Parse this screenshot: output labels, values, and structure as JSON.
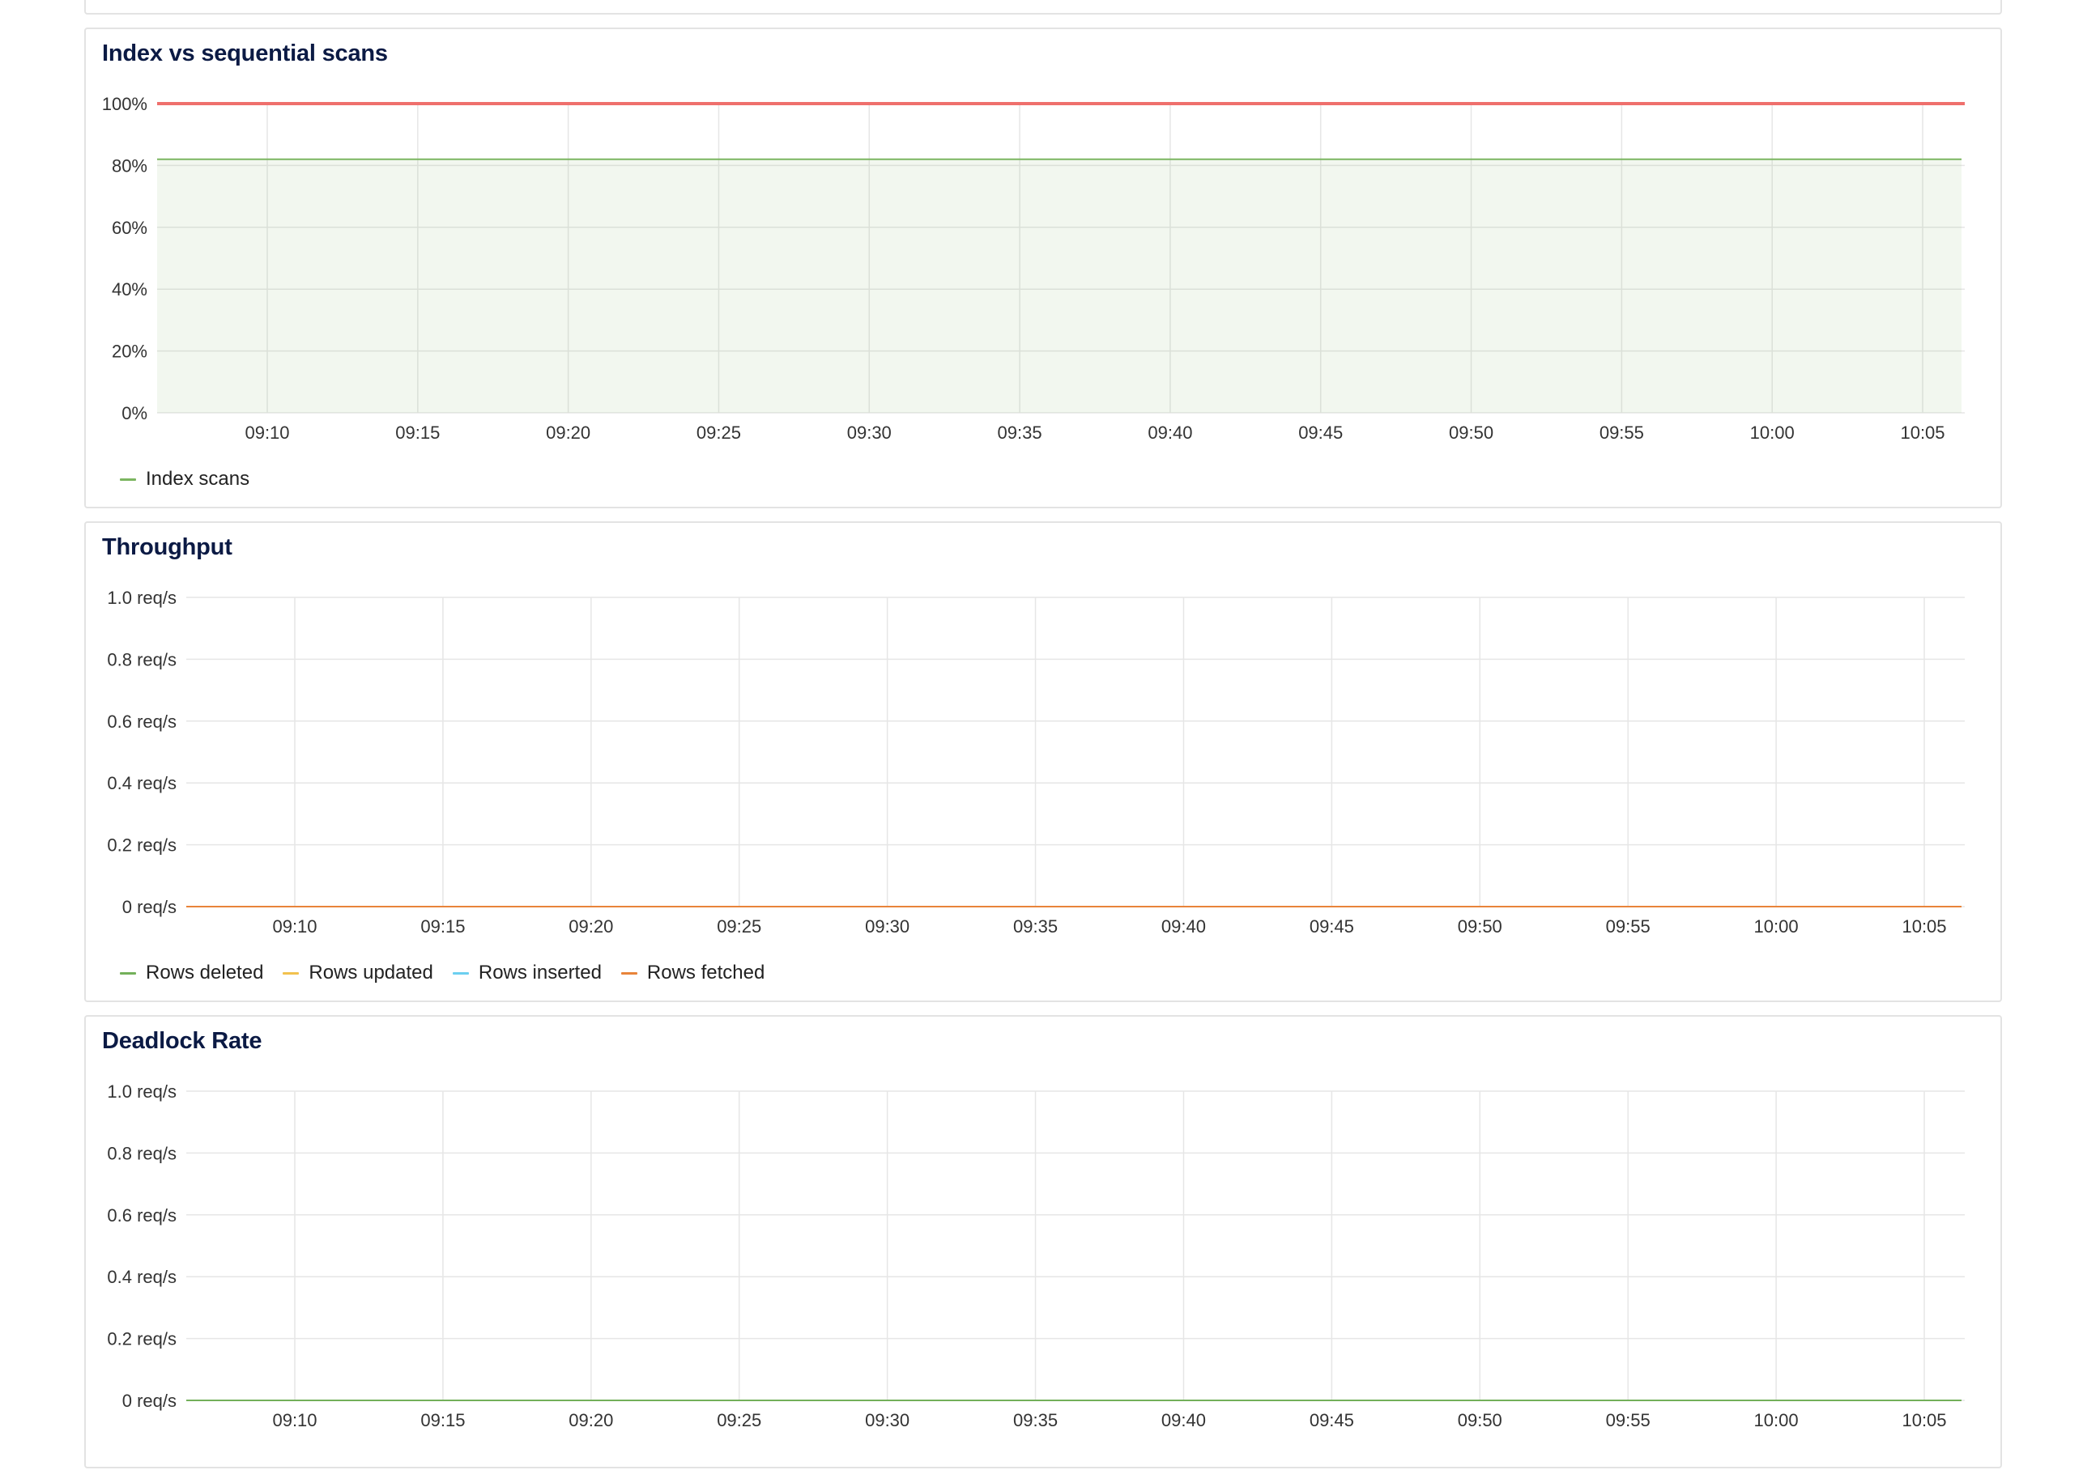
{
  "chart_data": [
    {
      "type": "area",
      "title": "Index vs sequential scans",
      "x": [
        "09:10",
        "09:15",
        "09:20",
        "09:25",
        "09:30",
        "09:35",
        "09:40",
        "09:45",
        "09:50",
        "09:55",
        "10:00",
        "10:05"
      ],
      "y_ticks": [
        "0%",
        "20%",
        "40%",
        "60%",
        "80%",
        "100%"
      ],
      "ylim": [
        0,
        100
      ],
      "series": [
        {
          "name": "Index scans",
          "color": "#7bb560",
          "values": [
            82,
            82,
            82,
            82,
            82,
            82,
            82,
            82,
            82,
            82,
            82,
            82
          ]
        }
      ],
      "reference_line": {
        "color": "#ef6f6c",
        "value": 100
      },
      "grid": true,
      "legend": "bottom-left"
    },
    {
      "type": "line",
      "title": "Throughput",
      "x": [
        "09:10",
        "09:15",
        "09:20",
        "09:25",
        "09:30",
        "09:35",
        "09:40",
        "09:45",
        "09:50",
        "09:55",
        "10:00",
        "10:05"
      ],
      "y_ticks": [
        "0 req/s",
        "0.2 req/s",
        "0.4 req/s",
        "0.6 req/s",
        "0.8 req/s",
        "1.0 req/s"
      ],
      "ylim": [
        0,
        1.0
      ],
      "series": [
        {
          "name": "Rows deleted",
          "color": "#73b05a",
          "values": [
            0,
            0,
            0,
            0,
            0,
            0,
            0,
            0,
            0,
            0,
            0,
            0
          ]
        },
        {
          "name": "Rows updated",
          "color": "#f2c14e",
          "values": [
            0,
            0,
            0,
            0,
            0,
            0,
            0,
            0,
            0,
            0,
            0,
            0
          ]
        },
        {
          "name": "Rows inserted",
          "color": "#6ccff0",
          "values": [
            0,
            0,
            0,
            0,
            0,
            0,
            0,
            0,
            0,
            0,
            0,
            0
          ]
        },
        {
          "name": "Rows fetched",
          "color": "#e8843a",
          "values": [
            0,
            0,
            0,
            0,
            0,
            0,
            0,
            0,
            0,
            0,
            0,
            0
          ]
        }
      ],
      "grid": true,
      "legend": "bottom-left"
    },
    {
      "type": "line",
      "title": "Deadlock Rate",
      "x": [
        "09:10",
        "09:15",
        "09:20",
        "09:25",
        "09:30",
        "09:35",
        "09:40",
        "09:45",
        "09:50",
        "09:55",
        "10:00",
        "10:05"
      ],
      "y_ticks": [
        "0 req/s",
        "0.2 req/s",
        "0.4 req/s",
        "0.6 req/s",
        "0.8 req/s",
        "1.0 req/s"
      ],
      "ylim": [
        0,
        1.0
      ],
      "series": [
        {
          "color": "#73b05a",
          "values": [
            0,
            0,
            0,
            0,
            0,
            0,
            0,
            0,
            0,
            0,
            0,
            0
          ]
        }
      ],
      "grid": true
    }
  ]
}
